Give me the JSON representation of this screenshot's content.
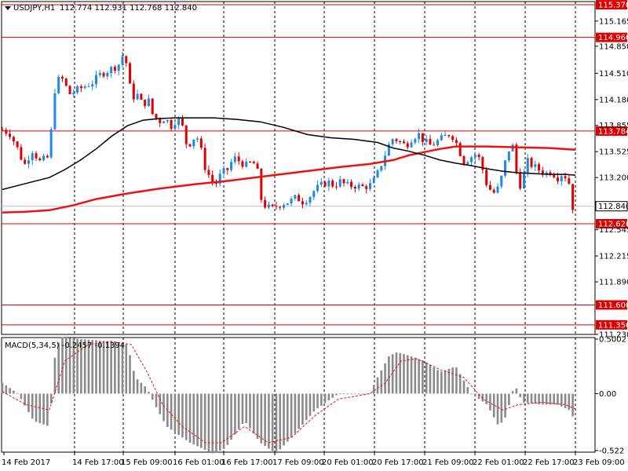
{
  "chart_data": {
    "type": "candlestick",
    "header": {
      "symbol_timeframe": "USDJPY,H1",
      "ohlc": "112.774 112.931 112.768 112.840"
    },
    "colors": {
      "bull": "#1e88e5",
      "bear": "#e00000",
      "ma_fast": "#000000",
      "ma_slow": "#ee1111",
      "level": "#dd0000",
      "histogram": "#8a8a8a",
      "signal": "#ee1111",
      "grid": "#000000",
      "bid_line": "#c0c0c0"
    },
    "price_axis": {
      "min": 111.23,
      "max": 115.41,
      "ticks": [
        "115.165",
        "114.850",
        "114.510",
        "114.180",
        "113.855",
        "113.525",
        "113.200",
        "112.545",
        "112.215",
        "111.890",
        "111.230"
      ],
      "current_price": "112.840"
    },
    "levels": [
      "115.370",
      "114.960",
      "113.784",
      "112.620",
      "111.600",
      "111.350"
    ],
    "time_axis": {
      "labels": [
        "14 Feb 2017",
        "14 Feb 17:00",
        "15 Feb 09:00",
        "16 Feb 01:00",
        "16 Feb 17:00",
        "17 Feb 09:00",
        "20 Feb 01:00",
        "20 Feb 17:00",
        "21 Feb 09:00",
        "22 Feb 01:00",
        "22 Feb 17:00",
        "23 Feb 09:00"
      ],
      "gridlines": true
    },
    "price_path": [
      [
        0,
        113.8
      ],
      [
        10,
        113.75
      ],
      [
        20,
        113.55
      ],
      [
        28,
        113.35
      ],
      [
        38,
        113.55
      ],
      [
        48,
        113.4
      ],
      [
        58,
        113.45
      ],
      [
        64,
        113.9
      ],
      [
        68,
        114.4
      ],
      [
        76,
        114.45
      ],
      [
        86,
        114.25
      ],
      [
        96,
        114.3
      ],
      [
        106,
        114.35
      ],
      [
        116,
        114.4
      ],
      [
        126,
        114.5
      ],
      [
        136,
        114.55
      ],
      [
        146,
        114.6
      ],
      [
        152,
        114.65
      ],
      [
        156,
        114.85
      ],
      [
        160,
        114.5
      ],
      [
        166,
        114.2
      ],
      [
        172,
        114.25
      ],
      [
        180,
        114.1
      ],
      [
        186,
        114.2
      ],
      [
        192,
        114.0
      ],
      [
        200,
        113.9
      ],
      [
        208,
        113.95
      ],
      [
        216,
        113.85
      ],
      [
        224,
        113.95
      ],
      [
        230,
        113.85
      ],
      [
        236,
        113.6
      ],
      [
        242,
        113.65
      ],
      [
        248,
        113.75
      ],
      [
        254,
        113.55
      ],
      [
        260,
        113.3
      ],
      [
        266,
        113.2
      ],
      [
        272,
        113.1
      ],
      [
        280,
        113.25
      ],
      [
        288,
        113.3
      ],
      [
        296,
        113.45
      ],
      [
        304,
        113.4
      ],
      [
        312,
        113.35
      ],
      [
        320,
        113.4
      ],
      [
        326,
        113.3
      ],
      [
        330,
        112.95
      ],
      [
        336,
        112.85
      ],
      [
        344,
        112.8
      ],
      [
        352,
        112.85
      ],
      [
        360,
        112.88
      ],
      [
        368,
        112.9
      ],
      [
        376,
        112.95
      ],
      [
        384,
        112.9
      ],
      [
        392,
        112.95
      ],
      [
        400,
        113.05
      ],
      [
        408,
        113.1
      ],
      [
        416,
        113.15
      ],
      [
        424,
        113.1
      ],
      [
        432,
        113.15
      ],
      [
        440,
        113.1
      ],
      [
        450,
        113.1
      ],
      [
        460,
        113.08
      ],
      [
        470,
        113.1
      ],
      [
        478,
        113.2
      ],
      [
        486,
        113.4
      ],
      [
        494,
        113.6
      ],
      [
        500,
        113.7
      ],
      [
        508,
        113.65
      ],
      [
        516,
        113.6
      ],
      [
        524,
        113.7
      ],
      [
        532,
        113.75
      ],
      [
        540,
        113.65
      ],
      [
        548,
        113.6
      ],
      [
        556,
        113.65
      ],
      [
        564,
        113.7
      ],
      [
        572,
        113.75
      ],
      [
        578,
        113.7
      ],
      [
        584,
        113.55
      ],
      [
        590,
        113.4
      ],
      [
        598,
        113.45
      ],
      [
        606,
        113.5
      ],
      [
        612,
        113.4
      ],
      [
        618,
        113.15
      ],
      [
        624,
        113.05
      ],
      [
        630,
        113.0
      ],
      [
        636,
        113.1
      ],
      [
        642,
        113.35
      ],
      [
        648,
        113.55
      ],
      [
        654,
        113.6
      ],
      [
        660,
        113.05
      ],
      [
        666,
        113.2
      ],
      [
        672,
        113.4
      ],
      [
        678,
        113.35
      ],
      [
        686,
        113.3
      ],
      [
        694,
        113.25
      ],
      [
        702,
        113.28
      ],
      [
        710,
        113.2
      ],
      [
        716,
        113.25
      ],
      [
        722,
        113.2
      ],
      [
        726,
        113.1
      ],
      [
        730,
        112.8
      ],
      [
        733,
        112.84
      ]
    ],
    "ma_fast": [
      [
        0,
        113.05
      ],
      [
        20,
        113.1
      ],
      [
        40,
        113.15
      ],
      [
        60,
        113.2
      ],
      [
        80,
        113.3
      ],
      [
        100,
        113.42
      ],
      [
        120,
        113.56
      ],
      [
        140,
        113.72
      ],
      [
        160,
        113.85
      ],
      [
        180,
        113.92
      ],
      [
        200,
        113.94
      ],
      [
        220,
        113.95
      ],
      [
        240,
        113.95
      ],
      [
        270,
        113.95
      ],
      [
        300,
        113.93
      ],
      [
        330,
        113.9
      ],
      [
        360,
        113.83
      ],
      [
        390,
        113.74
      ],
      [
        420,
        113.7
      ],
      [
        450,
        113.68
      ],
      [
        480,
        113.64
      ],
      [
        500,
        113.57
      ],
      [
        520,
        113.53
      ],
      [
        540,
        113.48
      ],
      [
        560,
        113.42
      ],
      [
        580,
        113.38
      ],
      [
        600,
        113.35
      ],
      [
        620,
        113.31
      ],
      [
        640,
        113.28
      ],
      [
        660,
        113.26
      ],
      [
        680,
        113.25
      ],
      [
        700,
        113.24
      ],
      [
        720,
        113.24
      ],
      [
        733,
        113.23
      ]
    ],
    "ma_slow": [
      [
        0,
        112.76
      ],
      [
        30,
        112.77
      ],
      [
        60,
        112.79
      ],
      [
        90,
        112.85
      ],
      [
        120,
        112.93
      ],
      [
        160,
        113.0
      ],
      [
        200,
        113.06
      ],
      [
        250,
        113.12
      ],
      [
        290,
        113.16
      ],
      [
        330,
        113.21
      ],
      [
        380,
        113.27
      ],
      [
        430,
        113.33
      ],
      [
        470,
        113.37
      ],
      [
        500,
        113.42
      ],
      [
        520,
        113.48
      ],
      [
        540,
        113.52
      ],
      [
        560,
        113.56
      ],
      [
        580,
        113.59
      ],
      [
        620,
        113.59
      ],
      [
        660,
        113.58
      ],
      [
        700,
        113.57
      ],
      [
        733,
        113.55
      ]
    ],
    "macd": {
      "label": "MACD(5,34,5) -0.2457 -0.1394",
      "ticks": [
        "0.5002",
        "0.00",
        "-0.522"
      ],
      "min": -0.522,
      "max": 0.5002,
      "histogram": [
        [
          0,
          0.1
        ],
        [
          20,
          0.0
        ],
        [
          40,
          -0.25
        ],
        [
          60,
          -0.3
        ],
        [
          68,
          0.4
        ],
        [
          75,
          0.52
        ],
        [
          100,
          0.5
        ],
        [
          140,
          0.48
        ],
        [
          160,
          0.45
        ],
        [
          170,
          0.15
        ],
        [
          185,
          0.05
        ],
        [
          195,
          -0.1
        ],
        [
          210,
          -0.3
        ],
        [
          240,
          -0.45
        ],
        [
          270,
          -0.55
        ],
        [
          285,
          -0.5
        ],
        [
          310,
          -0.25
        ],
        [
          330,
          -0.45
        ],
        [
          350,
          -0.55
        ],
        [
          370,
          -0.4
        ],
        [
          400,
          -0.15
        ],
        [
          430,
          0.0
        ],
        [
          470,
          0.0
        ],
        [
          480,
          0.15
        ],
        [
          495,
          0.35
        ],
        [
          505,
          0.38
        ],
        [
          520,
          0.35
        ],
        [
          540,
          0.3
        ],
        [
          560,
          0.2
        ],
        [
          580,
          0.25
        ],
        [
          600,
          0.0
        ],
        [
          620,
          -0.1
        ],
        [
          635,
          -0.3
        ],
        [
          645,
          -0.2
        ],
        [
          652,
          0.02
        ],
        [
          658,
          0.05
        ],
        [
          665,
          -0.08
        ],
        [
          690,
          -0.1
        ],
        [
          710,
          -0.1
        ],
        [
          725,
          -0.15
        ],
        [
          733,
          -0.25
        ]
      ],
      "signal": [
        [
          0,
          0.02
        ],
        [
          30,
          -0.1
        ],
        [
          60,
          -0.15
        ],
        [
          80,
          0.3
        ],
        [
          110,
          0.45
        ],
        [
          140,
          0.48
        ],
        [
          165,
          0.45
        ],
        [
          185,
          0.2
        ],
        [
          205,
          -0.1
        ],
        [
          230,
          -0.3
        ],
        [
          260,
          -0.45
        ],
        [
          280,
          -0.45
        ],
        [
          310,
          -0.3
        ],
        [
          340,
          -0.45
        ],
        [
          370,
          -0.4
        ],
        [
          400,
          -0.2
        ],
        [
          430,
          -0.05
        ],
        [
          470,
          0.0
        ],
        [
          490,
          0.1
        ],
        [
          510,
          0.3
        ],
        [
          530,
          0.32
        ],
        [
          560,
          0.22
        ],
        [
          590,
          0.15
        ],
        [
          615,
          -0.05
        ],
        [
          640,
          -0.15
        ],
        [
          660,
          -0.1
        ],
        [
          690,
          -0.08
        ],
        [
          720,
          -0.1
        ],
        [
          733,
          -0.14
        ]
      ]
    }
  }
}
